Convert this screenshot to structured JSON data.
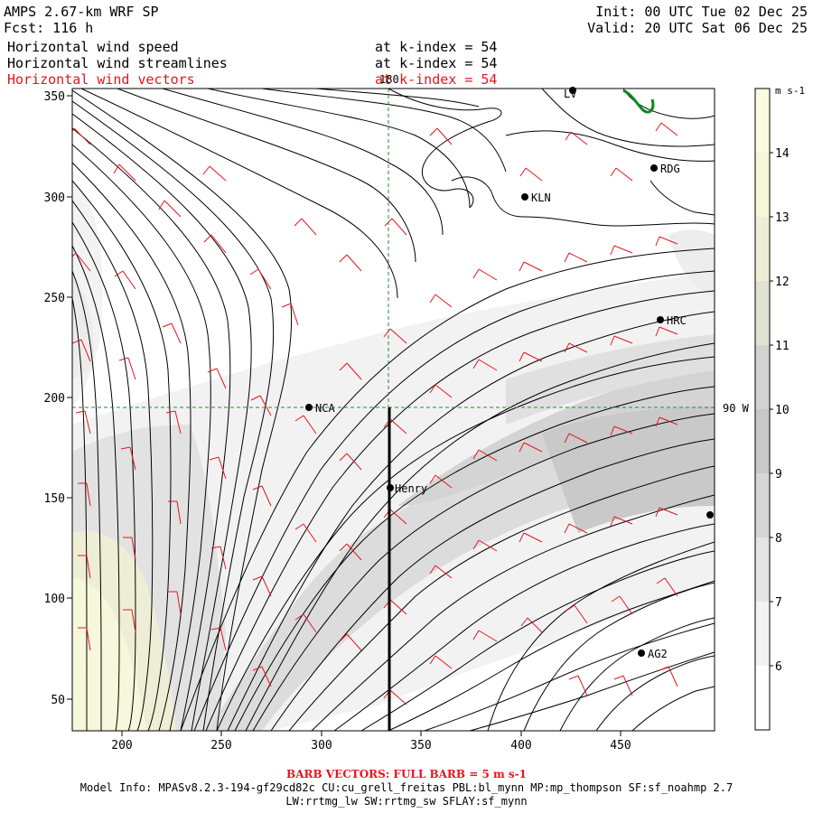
{
  "header": {
    "model": "AMPS 2.67-km WRF SP",
    "fcst": "Fcst: 116 h",
    "init": "Init: 00 UTC Tue 02 Dec 25",
    "valid": "Valid: 20 UTC Sat 06 Dec 25",
    "fields": [
      {
        "name": "Horizontal wind speed",
        "level": "at k-index = 54",
        "color": "#000000"
      },
      {
        "name": "Horizontal wind streamlines",
        "level": "at k-index = 54",
        "color": "#000000"
      },
      {
        "name": "Horizontal wind vectors",
        "level": "at k-index = 54",
        "color": "#e8141e"
      }
    ]
  },
  "map": {
    "x_ticks": [
      "200",
      "250",
      "300",
      "350",
      "400",
      "450"
    ],
    "y_ticks": [
      "50",
      "100",
      "150",
      "200",
      "250",
      "300",
      "350"
    ],
    "meridian_label": "180",
    "parallel_label": "90 W",
    "stations": [
      {
        "id": "LV",
        "label": "LV"
      },
      {
        "id": "RDG",
        "label": "RDG"
      },
      {
        "id": "KLN",
        "label": "KLN"
      },
      {
        "id": "HRC",
        "label": "HRC"
      },
      {
        "id": "NCA",
        "label": "NCA"
      },
      {
        "id": "Henry",
        "label": "Henry"
      },
      {
        "id": "AG2",
        "label": "AG2"
      },
      {
        "id": "edge",
        "label": ""
      }
    ]
  },
  "colorbar": {
    "units": "m s-1",
    "levels": [
      "6",
      "7",
      "8",
      "9",
      "10",
      "11",
      "12",
      "13",
      "14"
    ],
    "colors": [
      "#ffffff",
      "#f2f2f2",
      "#e4e4e4",
      "#d6d6d6",
      "#c8c8c8",
      "#d2d2d2",
      "#e2e2d2",
      "#eeeed8",
      "#f6f6d8",
      "#fbfbe4"
    ]
  },
  "footer": {
    "barb_note": "BARB VECTORS: FULL BARB = 5 m s-1",
    "model_info": "Model Info: MPASv8.2.3-194-gf29cd82c CU:cu_grell_freitas PBL:bl_mynn MP:mp_thompson SF:sf_noahmp 2.7",
    "model_info2": "LW:rrtmg_lw SW:rrtmg_sw SFLAY:sf_mynn"
  }
}
